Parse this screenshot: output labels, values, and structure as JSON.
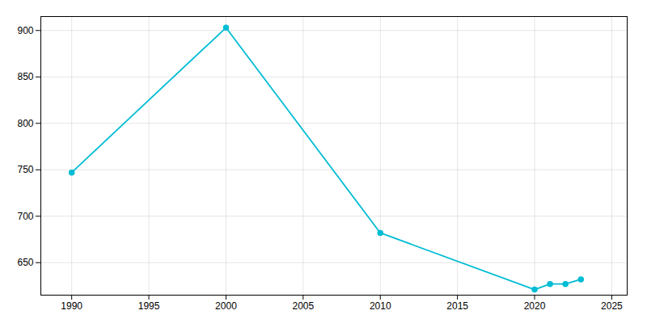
{
  "chart_data": {
    "type": "line",
    "x": [
      1990,
      2000,
      2010,
      2020,
      2021,
      2022,
      2023
    ],
    "values": [
      747,
      903,
      682,
      621,
      627,
      627,
      632
    ],
    "color": "#00BCD4",
    "marker": "circle",
    "xlim": [
      1988,
      2026
    ],
    "ylim": [
      615,
      915
    ],
    "xticks": [
      1990,
      1995,
      2000,
      2005,
      2010,
      2015,
      2020,
      2025
    ],
    "yticks": [
      650,
      700,
      750,
      800,
      850,
      900
    ],
    "grid": true
  }
}
